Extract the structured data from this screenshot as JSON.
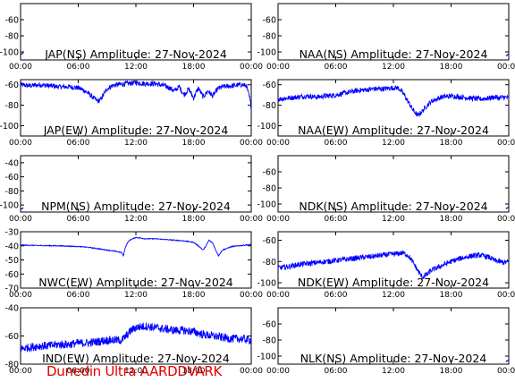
{
  "footer": "Dunedin Ultra AARDDVARK",
  "trace_color": "#0000ff",
  "footer_color": "#e00000",
  "chart_data": [
    {
      "type": "line",
      "title": "JAP(NS) Amplitude: 27-Nov-2024",
      "xlabel": "",
      "ylabel": "",
      "x_ticks": [
        "00:00",
        "06:00",
        "12:00",
        "18:00",
        "00:00"
      ],
      "xlim": [
        0,
        24
      ],
      "y_ticks": [
        -60,
        -80,
        -100
      ],
      "ylim": [
        -110,
        -40
      ],
      "grid": false,
      "series": [
        {
          "x": [
            0.05,
            0.3
          ],
          "y": [
            -103,
            -101
          ]
        }
      ]
    },
    {
      "type": "line",
      "title": "NAA(NS) Amplitude: 27-Nov-2024",
      "xlabel": "",
      "ylabel": "",
      "x_ticks": [
        "00:00",
        "06:00",
        "12:00",
        "18:00",
        "00:00"
      ],
      "xlim": [
        0,
        24
      ],
      "y_ticks": [
        -60,
        -80,
        -100
      ],
      "ylim": [
        -110,
        -40
      ],
      "grid": false,
      "series": [
        {
          "x": [
            23.7,
            23.95
          ],
          "y": [
            -105,
            -103
          ]
        }
      ]
    },
    {
      "type": "line",
      "title": "JAP(EW) Amplitude: 27-Nov-2024",
      "xlabel": "",
      "ylabel": "",
      "x_ticks": [
        "00:00",
        "06:00",
        "12:00",
        "18:00",
        "00:00"
      ],
      "xlim": [
        0,
        24
      ],
      "y_ticks": [
        -60,
        -80,
        -100
      ],
      "ylim": [
        -110,
        -55
      ],
      "grid": false,
      "series": [
        {
          "noise": 2.5,
          "x": [
            0,
            1,
            2,
            3,
            4,
            5,
            6,
            6.5,
            7,
            7.5,
            8,
            8.3,
            8.6,
            9,
            9.5,
            10,
            11,
            12,
            13,
            14,
            15,
            15.5,
            16,
            16.5,
            17,
            17.5,
            18,
            18.5,
            19,
            19.5,
            20,
            20.5,
            21,
            22,
            23,
            23.5,
            23.8,
            24
          ],
          "y": [
            -60,
            -61,
            -60,
            -61,
            -62,
            -62,
            -63,
            -65,
            -68,
            -72,
            -76,
            -75,
            -70,
            -64,
            -61,
            -60,
            -59,
            -58,
            -59,
            -59,
            -61,
            -63,
            -66,
            -62,
            -70,
            -64,
            -73,
            -63,
            -72,
            -66,
            -71,
            -64,
            -62,
            -61,
            -60,
            -61,
            -72,
            -82
          ]
        }
      ]
    },
    {
      "type": "line",
      "title": "NAA(EW) Amplitude: 27-Nov-2024",
      "xlabel": "",
      "ylabel": "",
      "x_ticks": [
        "00:00",
        "06:00",
        "12:00",
        "18:00",
        "00:00"
      ],
      "xlim": [
        0,
        24
      ],
      "y_ticks": [
        -60,
        -80,
        -100
      ],
      "ylim": [
        -110,
        -55
      ],
      "grid": false,
      "series": [
        {
          "noise": 2.5,
          "x": [
            0,
            1,
            2,
            3,
            4,
            5,
            6,
            7,
            8,
            9,
            10,
            11,
            12,
            12.5,
            13,
            13.5,
            14,
            14.5,
            15,
            15.5,
            16,
            17,
            18,
            19,
            20,
            21,
            22,
            22.5,
            23,
            23.5,
            24
          ],
          "y": [
            -74,
            -73,
            -72,
            -71,
            -72,
            -71,
            -70,
            -68,
            -66,
            -65,
            -64,
            -64,
            -63,
            -63,
            -68,
            -76,
            -84,
            -90,
            -86,
            -80,
            -76,
            -72,
            -71,
            -72,
            -73,
            -74,
            -73,
            -72,
            -73,
            -72,
            -73
          ]
        }
      ]
    },
    {
      "type": "line",
      "title": "NPM(NS) Amplitude: 27-Nov-2024",
      "xlabel": "",
      "ylabel": "",
      "x_ticks": [
        "00:00",
        "06:00",
        "12:00",
        "18:00",
        "00:00"
      ],
      "xlim": [
        0,
        24
      ],
      "y_ticks": [
        -40,
        -60,
        -80,
        -100
      ],
      "ylim": [
        -110,
        -30
      ],
      "grid": false,
      "series": [
        {
          "x": [
            0.05,
            0.3
          ],
          "y": [
            -106,
            -104
          ]
        }
      ]
    },
    {
      "type": "line",
      "title": "NDK(NS) Amplitude: 27-Nov-2024",
      "xlabel": "",
      "ylabel": "",
      "x_ticks": [
        "00:00",
        "06:00",
        "12:00",
        "18:00",
        "00:00"
      ],
      "xlim": [
        0,
        24
      ],
      "y_ticks": [
        -60,
        -80,
        -100
      ],
      "ylim": [
        -110,
        -40
      ],
      "grid": false,
      "series": [
        {
          "x": [
            23.7,
            23.95
          ],
          "y": [
            -106,
            -104
          ]
        }
      ]
    },
    {
      "type": "line",
      "title": "NWC(EW) Amplitude: 27-Nov-2024",
      "xlabel": "",
      "ylabel": "",
      "x_ticks": [
        "00:00",
        "06:00",
        "12:00",
        "18:00",
        "00:00"
      ],
      "xlim": [
        0,
        24
      ],
      "y_ticks": [
        -30,
        -40,
        -50,
        -60,
        -70
      ],
      "ylim": [
        -70,
        -30
      ],
      "grid": false,
      "series": [
        {
          "noise": 0.3,
          "x": [
            0,
            2,
            4,
            6,
            7,
            8,
            9,
            10,
            10.5,
            10.7,
            10.9,
            11.2,
            11.5,
            12,
            12.5,
            13,
            14,
            15,
            16,
            17,
            18,
            18.5,
            19,
            19.3,
            19.6,
            20,
            20.3,
            20.6,
            21,
            22,
            23,
            24
          ],
          "y": [
            -39.5,
            -39.8,
            -40,
            -40.5,
            -41,
            -42,
            -43,
            -44,
            -44.8,
            -47,
            -41,
            -37,
            -35.5,
            -34,
            -34.5,
            -35,
            -35,
            -35.5,
            -36,
            -36.5,
            -37.5,
            -40,
            -43,
            -40,
            -36,
            -38,
            -43,
            -47,
            -43,
            -40.5,
            -39.8,
            -39
          ]
        }
      ]
    },
    {
      "type": "line",
      "title": "NDK(EW) Amplitude: 27-Nov-2024",
      "xlabel": "",
      "ylabel": "",
      "x_ticks": [
        "00:00",
        "06:00",
        "12:00",
        "18:00",
        "00:00"
      ],
      "xlim": [
        0,
        24
      ],
      "y_ticks": [
        -60,
        -80,
        -100
      ],
      "ylim": [
        -105,
        -52
      ],
      "grid": false,
      "series": [
        {
          "noise": 2.5,
          "x": [
            0,
            1,
            2,
            3,
            4,
            5,
            6,
            7,
            8,
            9,
            10,
            11,
            12,
            13,
            13.5,
            14,
            14.5,
            15,
            15.5,
            16,
            17,
            18,
            19,
            20,
            21,
            22,
            22.5,
            23,
            23.5,
            24
          ],
          "y": [
            -86,
            -85,
            -83,
            -82,
            -81,
            -80,
            -79,
            -78,
            -77,
            -76,
            -75,
            -74,
            -73,
            -72,
            -74,
            -80,
            -88,
            -95,
            -92,
            -88,
            -84,
            -80,
            -77,
            -75,
            -74,
            -76,
            -79,
            -80,
            -81,
            -80
          ]
        }
      ]
    },
    {
      "type": "line",
      "title": "IND(EW) Amplitude: 27-Nov-2024",
      "xlabel": "",
      "ylabel": "",
      "x_ticks": [
        "00:00",
        "06:00",
        "12:00",
        "18:00",
        "00:00"
      ],
      "xlim": [
        0,
        24
      ],
      "y_ticks": [
        -40,
        -60,
        -80
      ],
      "ylim": [
        -80,
        -40
      ],
      "grid": false,
      "series": [
        {
          "noise": 3,
          "x": [
            0,
            1,
            2,
            3,
            4,
            5,
            6,
            7,
            8,
            9,
            10,
            10.5,
            11,
            11.5,
            12,
            13,
            14,
            15,
            16,
            17,
            18,
            19,
            20,
            21,
            22,
            23,
            24
          ],
          "y": [
            -69,
            -68,
            -67,
            -67,
            -66,
            -66,
            -65,
            -65,
            -64,
            -63,
            -63,
            -63,
            -60,
            -56,
            -54,
            -53,
            -54,
            -55,
            -56,
            -56,
            -57,
            -59,
            -60,
            -61,
            -62,
            -62,
            -63
          ]
        }
      ]
    },
    {
      "type": "line",
      "title": "NLK(NS) Amplitude: 27-Nov-2024",
      "xlabel": "",
      "ylabel": "",
      "x_ticks": [
        "00:00",
        "06:00",
        "12:00",
        "18:00",
        "00:00"
      ],
      "xlim": [
        0,
        24
      ],
      "y_ticks": [
        -60,
        -80,
        -100
      ],
      "ylim": [
        -110,
        -40
      ],
      "grid": false,
      "series": [
        {
          "x": [
            23.7,
            23.95
          ],
          "y": [
            -107,
            -105
          ]
        }
      ]
    }
  ]
}
